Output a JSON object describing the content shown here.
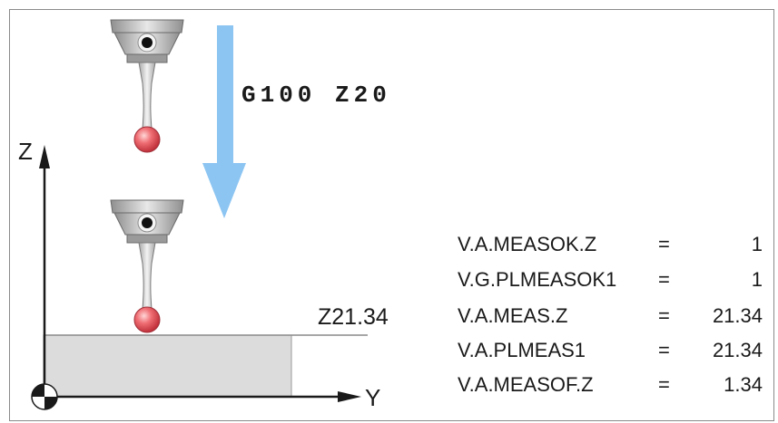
{
  "command": "G100  Z20",
  "axes": {
    "z_label": "Z",
    "y_label": "Y"
  },
  "measured_label": "Z21.34",
  "variables": [
    {
      "name": "V.A.MEASOK.Z",
      "eq": "=",
      "value": "1"
    },
    {
      "name": "V.G.PLMEASOK1",
      "eq": "=",
      "value": "1"
    },
    {
      "name": "V.A.MEAS.Z",
      "eq": "=",
      "value": "21.34"
    },
    {
      "name": "V.A.PLMEAS1",
      "eq": "=",
      "value": "21.34"
    },
    {
      "name": "V.A.MEASOF.Z",
      "eq": "=",
      "value": "1.34"
    }
  ],
  "colors": {
    "arrow": "#8cc5f2",
    "probe_body": "#bfbfbf",
    "probe_ball": "#e0505a",
    "workpiece": "#dcdcdc"
  }
}
